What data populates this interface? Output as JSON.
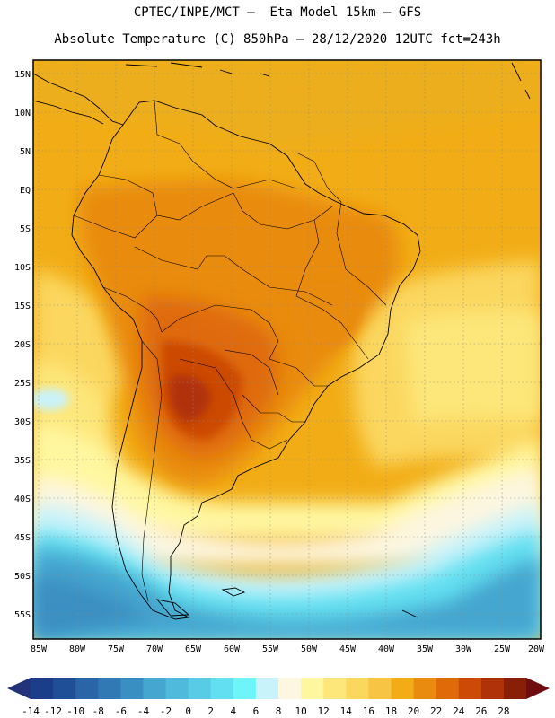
{
  "title_line1": "CPTEC/INPE/MCT –  Eta Model 15km – GFS",
  "title_line2": "Absolute Temperature (C) 850hPa – 28/12/2020 12UTC fct=243h",
  "lat_labels": [
    "15N",
    "10N",
    "5N",
    "EQ",
    "5S",
    "10S",
    "15S",
    "20S",
    "25S",
    "30S",
    "35S",
    "40S",
    "45S",
    "50S",
    "55S"
  ],
  "lon_labels": [
    "85W",
    "80W",
    "75W",
    "70W",
    "65W",
    "60W",
    "55W",
    "50W",
    "45W",
    "40W",
    "35W",
    "30W",
    "25W",
    "20W"
  ],
  "colorbar": {
    "labels": [
      "-14",
      "-12",
      "-10",
      "-8",
      "-6",
      "-4",
      "-2",
      "0",
      "2",
      "4",
      "6",
      "8",
      "10",
      "12",
      "14",
      "16",
      "18",
      "20",
      "22",
      "24",
      "26",
      "28"
    ],
    "colors": [
      "#1b3d8a",
      "#1f4f96",
      "#2a65a8",
      "#3179b5",
      "#3a8fc2",
      "#45a6cf",
      "#4fbadc",
      "#58cce6",
      "#62dff0",
      "#6ef5fa",
      "#c9f3fb",
      "#fdf6e0",
      "#fff7a0",
      "#fde77a",
      "#fbd75e",
      "#f7c444",
      "#f2ad16",
      "#e98b0f",
      "#df6a08",
      "#cc4a06",
      "#b03208",
      "#8a1f08"
    ],
    "under_color": "#22337a",
    "over_color": "#6e0e10"
  },
  "palette": {
    "ocean_warm": "#f2ad16",
    "land_hot": "#df6a08",
    "land_hottest": "#b4460a",
    "cool_band": "#fdf6e0",
    "cold_band": "#45a6cf"
  }
}
